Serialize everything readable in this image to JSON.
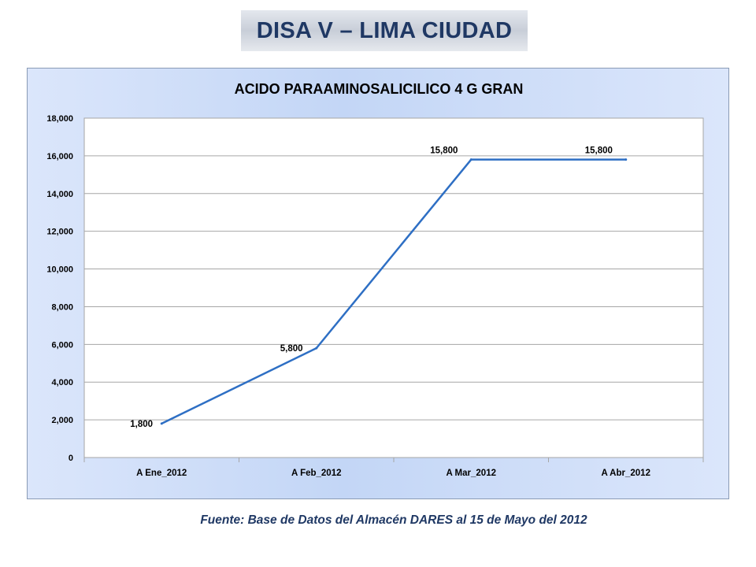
{
  "header": {
    "title": "DISA V – LIMA CIUDAD"
  },
  "footer": {
    "source": "Fuente: Base de Datos del Almacén DARES al 15 de Mayo del 2012"
  },
  "chart_data": {
    "type": "line",
    "title": "ACIDO PARAAMINOSALICILICO 4 G GRAN",
    "categories": [
      "A Ene_2012",
      "A Feb_2012",
      "A Mar_2012",
      "A Abr_2012"
    ],
    "values": [
      1800,
      5800,
      15800,
      15800
    ],
    "data_labels": [
      "1,800",
      "5,800",
      "15,800",
      "15,800"
    ],
    "ylim": [
      0,
      18000
    ],
    "yticks": [
      0,
      2000,
      4000,
      6000,
      8000,
      10000,
      12000,
      14000,
      16000,
      18000
    ],
    "ytick_labels": [
      "0",
      "2,000",
      "4,000",
      "6,000",
      "8,000",
      "10,000",
      "12,000",
      "14,000",
      "16,000",
      "18,000"
    ],
    "xlabel": "",
    "ylabel": "",
    "grid": true,
    "legend": "none",
    "line_color": "#2e6fc4"
  }
}
